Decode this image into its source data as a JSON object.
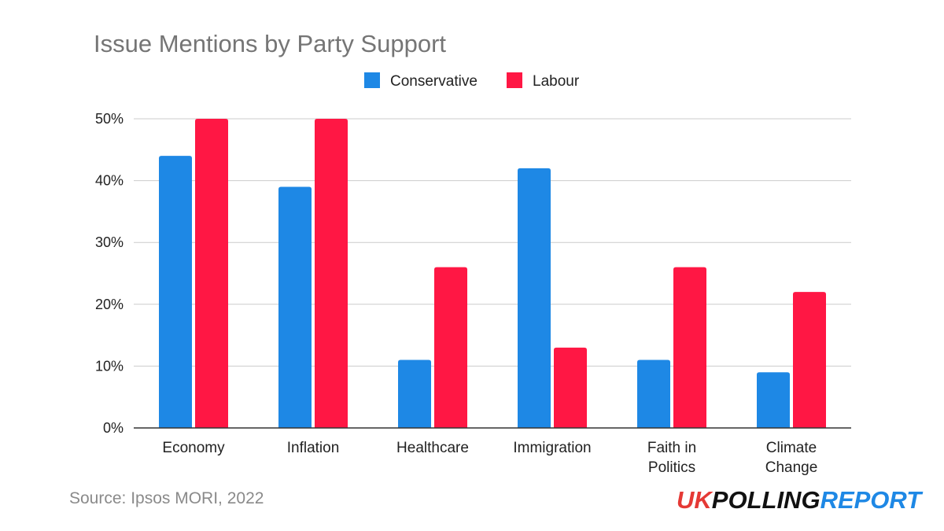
{
  "chart_data": {
    "type": "bar",
    "title": "Issue Mentions by Party Support",
    "categories": [
      [
        "Economy"
      ],
      [
        "Inflation"
      ],
      [
        "Healthcare"
      ],
      [
        "Immigration"
      ],
      [
        "Faith in",
        "Politics"
      ],
      [
        "Climate",
        "Change"
      ]
    ],
    "series": [
      {
        "name": "Conservative",
        "color": "#1e88e5",
        "values": [
          44,
          39,
          11,
          42,
          11,
          9
        ]
      },
      {
        "name": "Labour",
        "color": "#ff1744",
        "values": [
          50,
          50,
          26,
          13,
          26,
          22
        ]
      }
    ],
    "ylim": [
      0,
      50
    ],
    "yticks": [
      "0%",
      "10%",
      "20%",
      "30%",
      "40%",
      "50%"
    ],
    "grid": true,
    "legend_position": "top"
  },
  "source": "Source: Ipsos MORI, 2022",
  "brand": {
    "part1": "UK",
    "part2": "POLLING",
    "part3": "REPORT",
    "color1": "#e53935",
    "color2": "#111111",
    "color3": "#1e88e5"
  }
}
